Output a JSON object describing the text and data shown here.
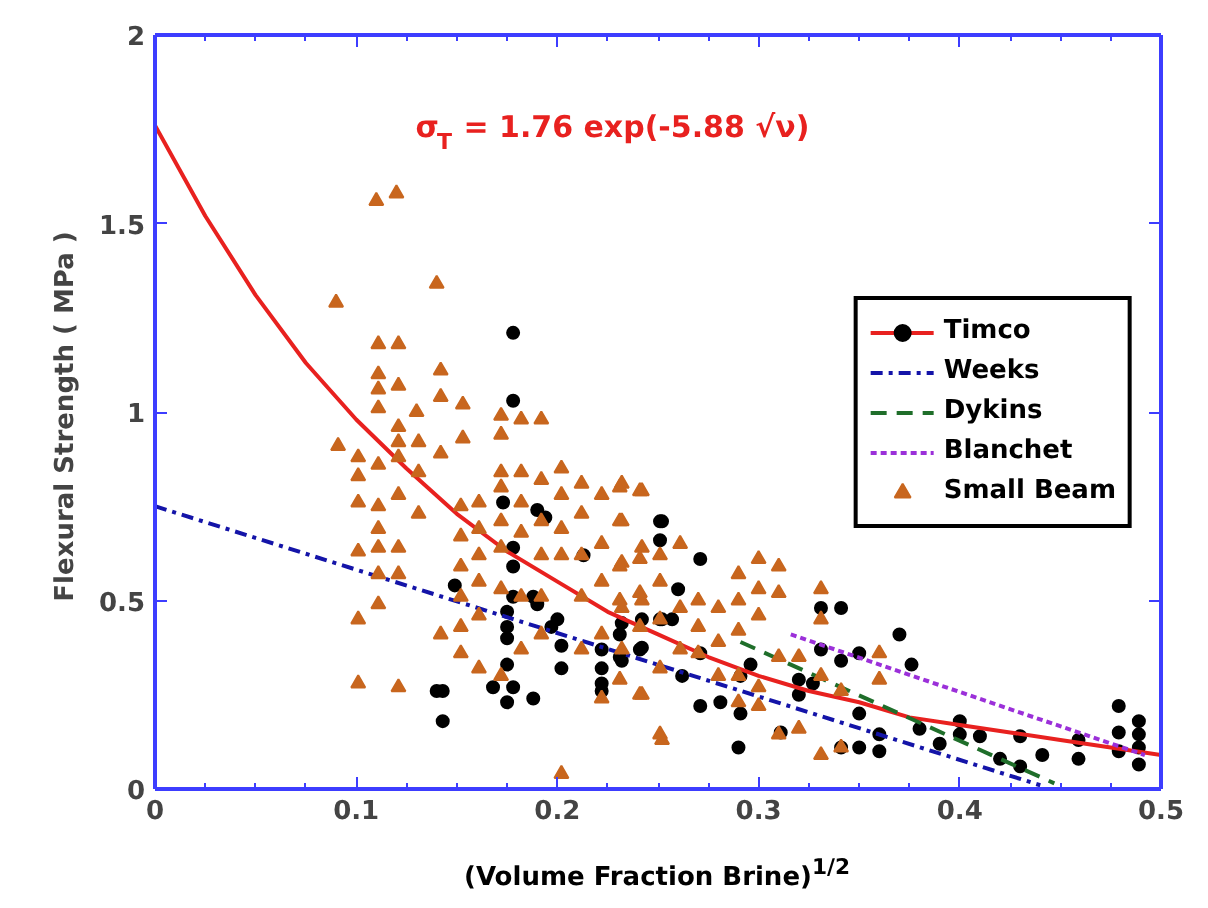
{
  "chart_data": {
    "type": "scatter",
    "xlabel": "(Volume Fraction Brine)$^{1/2}$",
    "ylabel": "Flexural Strength  ( MPa )",
    "annotations": [
      "σ$_{T}$ = 1.76 exp(-5.88 √ν)"
    ],
    "xlim": [
      0,
      0.5
    ],
    "ylim": [
      0,
      2
    ],
    "xticks": [
      0,
      0.1,
      0.2,
      0.3,
      0.4,
      0.5
    ],
    "yticks": [
      0,
      0.5,
      1,
      1.5,
      2
    ],
    "grid": false,
    "legend": "right",
    "series": [
      {
        "name": "Timco",
        "marker": "circle",
        "color": "#000000",
        "x": [
          0.251,
          0.251,
          0.251,
          0.231,
          0.231,
          0.241,
          0.257,
          0.26,
          0.262,
          0.271,
          0.271,
          0.271,
          0.281,
          0.291,
          0.291,
          0.29,
          0.296,
          0.311,
          0.32,
          0.32,
          0.327,
          0.331,
          0.341,
          0.331,
          0.341,
          0.35,
          0.35,
          0.35,
          0.341,
          0.36,
          0.36,
          0.37,
          0.376,
          0.38,
          0.39,
          0.4,
          0.4,
          0.41,
          0.42,
          0.43,
          0.43,
          0.441,
          0.459,
          0.459,
          0.479,
          0.479,
          0.479,
          0.489,
          0.489,
          0.489,
          0.489,
          0.178,
          0.178,
          0.14,
          0.143,
          0.143,
          0.149,
          0.168,
          0.175,
          0.178,
          0.175,
          0.173,
          0.175,
          0.175,
          0.175,
          0.178,
          0.178,
          0.178,
          0.188,
          0.188,
          0.19,
          0.19,
          0.194,
          0.197,
          0.2,
          0.202,
          0.202,
          0.222,
          0.222,
          0.222,
          0.222,
          0.232,
          0.232,
          0.242,
          0.252,
          0.252,
          0.242,
          0.213
        ],
        "values": [
          0.71,
          0.66,
          0.45,
          0.41,
          0.35,
          0.37,
          0.45,
          0.53,
          0.3,
          0.61,
          0.36,
          0.22,
          0.23,
          0.3,
          0.2,
          0.11,
          0.33,
          0.15,
          0.29,
          0.25,
          0.28,
          0.48,
          0.48,
          0.37,
          0.34,
          0.36,
          0.2,
          0.11,
          0.11,
          0.145,
          0.1,
          0.41,
          0.33,
          0.16,
          0.12,
          0.18,
          0.145,
          0.14,
          0.08,
          0.14,
          0.06,
          0.09,
          0.13,
          0.08,
          0.22,
          0.15,
          0.1,
          0.18,
          0.145,
          0.11,
          0.065,
          1.21,
          1.03,
          0.26,
          0.26,
          0.18,
          0.54,
          0.27,
          0.23,
          0.27,
          0.33,
          0.76,
          0.47,
          0.43,
          0.4,
          0.64,
          0.59,
          0.51,
          0.24,
          0.51,
          0.49,
          0.74,
          0.72,
          0.43,
          0.45,
          0.38,
          0.32,
          0.32,
          0.28,
          0.26,
          0.37,
          0.44,
          0.34,
          0.375,
          0.71,
          0.45,
          0.45,
          0.62
        ]
      },
      {
        "type": "line",
        "line_style": "solid",
        "color": "#e8211f",
        "x": [
          0,
          0.025,
          0.05,
          0.075,
          0.1,
          0.125,
          0.15,
          0.175,
          0.2,
          0.225,
          0.25,
          0.275,
          0.3,
          0.325,
          0.35,
          0.375,
          0.4,
          0.425,
          0.45,
          0.475,
          0.5
        ],
        "values": [
          1.76,
          1.52,
          1.31,
          1.13,
          0.98,
          0.85,
          0.73,
          0.63,
          0.55,
          0.47,
          0.41,
          0.35,
          0.3,
          0.26,
          0.23,
          0.19,
          0.17,
          0.15,
          0.13,
          0.11,
          0.09
        ]
      },
      {
        "name": "Weeks",
        "type": "line",
        "line_style": "dashdot",
        "color": "#1414a8",
        "x": [
          0,
          0.44
        ],
        "values": [
          0.75,
          0.01
        ]
      },
      {
        "name": "Dykins",
        "type": "line",
        "line_style": "dashed",
        "color": "#1f6e2a",
        "x": [
          0.291,
          0.447
        ],
        "values": [
          0.39,
          0.015
        ]
      },
      {
        "name": "Blanchet",
        "type": "line",
        "line_style": "dotted",
        "color": "#9b30d9",
        "x": [
          0.316,
          0.492
        ],
        "values": [
          0.41,
          0.09
        ]
      },
      {
        "name": "Small Beam",
        "marker": "triangle",
        "color": "#c8661e",
        "x": [
          0.09,
          0.11,
          0.12,
          0.14,
          0.091,
          0.101,
          0.101,
          0.101,
          0.101,
          0.101,
          0.101,
          0.111,
          0.111,
          0.111,
          0.111,
          0.111,
          0.111,
          0.111,
          0.111,
          0.111,
          0.111,
          0.121,
          0.121,
          0.121,
          0.121,
          0.121,
          0.121,
          0.121,
          0.121,
          0.121,
          0.13,
          0.131,
          0.131,
          0.131,
          0.142,
          0.142,
          0.142,
          0.142,
          0.153,
          0.153,
          0.152,
          0.152,
          0.152,
          0.152,
          0.152,
          0.152,
          0.161,
          0.161,
          0.161,
          0.161,
          0.161,
          0.161,
          0.172,
          0.172,
          0.172,
          0.172,
          0.172,
          0.172,
          0.172,
          0.172,
          0.182,
          0.182,
          0.182,
          0.182,
          0.182,
          0.182,
          0.192,
          0.192,
          0.192,
          0.192,
          0.192,
          0.192,
          0.202,
          0.202,
          0.202,
          0.202,
          0.202,
          0.212,
          0.212,
          0.212,
          0.212,
          0.212,
          0.222,
          0.222,
          0.222,
          0.222,
          0.222,
          0.232,
          0.232,
          0.232,
          0.232,
          0.232,
          0.242,
          0.242,
          0.242,
          0.242,
          0.252,
          0.231,
          0.241,
          0.231,
          0.231,
          0.231,
          0.231,
          0.241,
          0.241,
          0.241,
          0.241,
          0.251,
          0.251,
          0.251,
          0.251,
          0.251,
          0.261,
          0.261,
          0.261,
          0.27,
          0.27,
          0.27,
          0.28,
          0.28,
          0.28,
          0.29,
          0.29,
          0.29,
          0.29,
          0.29,
          0.3,
          0.3,
          0.3,
          0.3,
          0.3,
          0.31,
          0.31,
          0.31,
          0.31,
          0.32,
          0.32,
          0.331,
          0.331,
          0.331,
          0.331,
          0.341,
          0.341,
          0.36,
          0.36
        ],
        "values": [
          1.29,
          1.56,
          1.58,
          1.34,
          0.91,
          0.88,
          0.83,
          0.76,
          0.63,
          0.45,
          0.28,
          1.18,
          1.1,
          1.06,
          1.01,
          0.86,
          0.75,
          0.69,
          0.64,
          0.57,
          0.49,
          1.18,
          1.07,
          0.96,
          0.92,
          0.88,
          0.78,
          0.64,
          0.57,
          0.27,
          1.0,
          0.92,
          0.84,
          0.73,
          1.11,
          1.04,
          0.89,
          0.41,
          1.02,
          0.93,
          0.75,
          0.67,
          0.59,
          0.51,
          0.43,
          0.36,
          0.76,
          0.69,
          0.62,
          0.55,
          0.46,
          0.32,
          0.99,
          0.94,
          0.84,
          0.8,
          0.71,
          0.64,
          0.53,
          0.3,
          0.98,
          0.84,
          0.76,
          0.68,
          0.51,
          0.37,
          0.98,
          0.82,
          0.71,
          0.62,
          0.51,
          0.41,
          0.85,
          0.78,
          0.69,
          0.62,
          0.04,
          0.81,
          0.73,
          0.62,
          0.51,
          0.37,
          0.78,
          0.65,
          0.55,
          0.41,
          0.24,
          0.81,
          0.71,
          0.6,
          0.48,
          0.37,
          0.79,
          0.64,
          0.5,
          0.25,
          0.13,
          0.8,
          0.79,
          0.71,
          0.59,
          0.5,
          0.29,
          0.61,
          0.52,
          0.43,
          0.25,
          0.62,
          0.55,
          0.45,
          0.32,
          0.145,
          0.65,
          0.48,
          0.37,
          0.5,
          0.43,
          0.36,
          0.48,
          0.39,
          0.3,
          0.57,
          0.5,
          0.42,
          0.3,
          0.23,
          0.61,
          0.53,
          0.46,
          0.27,
          0.22,
          0.59,
          0.52,
          0.35,
          0.145,
          0.35,
          0.16,
          0.53,
          0.45,
          0.3,
          0.09,
          0.26,
          0.11,
          0.36,
          0.29
        ]
      }
    ]
  }
}
